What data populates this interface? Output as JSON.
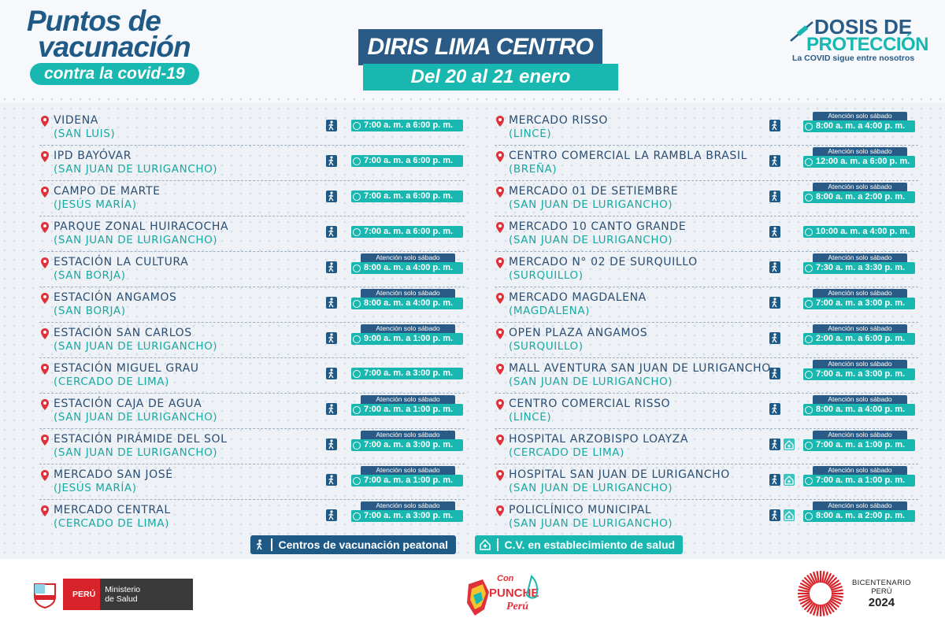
{
  "header": {
    "title_line1": "Puntos de",
    "title_line2": "vacunación",
    "title_pill": "contra la covid-19",
    "diris": "DIRIS LIMA CENTRO",
    "dates": "Del 20 al 21  enero",
    "campaign_line1": "DOSIS DE",
    "campaign_line2": "PROTECCIÓN",
    "campaign_line3": "La COVID sigue entre nosotros"
  },
  "saturday_label": "Atención solo  sábado",
  "left_points": [
    {
      "name": "VIDENA",
      "district": "(SAN LUIS)",
      "hours": "7:00 a. m. a 6:00 p. m.",
      "saturday_only": false,
      "health": false
    },
    {
      "name": "IPD BAYÓVAR",
      "district": "(SAN JUAN DE LURIGANCHO)",
      "hours": "7:00 a. m. a 6:00 p. m.",
      "saturday_only": false,
      "health": false
    },
    {
      "name": "CAMPO DE MARTE",
      "district": "(JESÚS MARÍA)",
      "hours": "7:00 a. m. a 6:00 p. m.",
      "saturday_only": false,
      "health": false
    },
    {
      "name": "PARQUE ZONAL HUIRACOCHA",
      "district": "(SAN JUAN DE LURIGANCHO)",
      "hours": "7:00 a. m. a 6:00 p. m.",
      "saturday_only": false,
      "health": false
    },
    {
      "name": "ESTACIÓN LA CULTURA",
      "district": "(SAN BORJA)",
      "hours": "8:00 a. m. a 4:00 p. m.",
      "saturday_only": true,
      "health": false
    },
    {
      "name": "ESTACIÓN ANGAMOS",
      "district": "(SAN BORJA)",
      "hours": "8:00 a. m. a 4:00 p. m.",
      "saturday_only": true,
      "health": false
    },
    {
      "name": "ESTACIÓN SAN CARLOS",
      "district": "(SAN JUAN DE LURIGANCHO)",
      "hours": "9:00 a. m. a 1:00 p. m.",
      "saturday_only": true,
      "health": false
    },
    {
      "name": "ESTACIÓN MIGUEL GRAU",
      "district": "(CERCADO DE LIMA)",
      "hours": "7:00 a. m. a 3:00 p. m.",
      "saturday_only": false,
      "health": false
    },
    {
      "name": "ESTACIÓN CAJA DE AGUA",
      "district": "(SAN JUAN DE LURIGANCHO)",
      "hours": "7:00 a. m. a 1:00 p. m.",
      "saturday_only": true,
      "health": false
    },
    {
      "name": "ESTACIÓN PIRÁMIDE DEL SOL",
      "district": "(SAN JUAN DE LURIGANCHO)",
      "hours": "7:00 a. m. a 3:00 p. m.",
      "saturday_only": true,
      "health": false
    },
    {
      "name": "MERCADO SAN JOSÉ",
      "district": "(JESÚS MARÍA)",
      "hours": "7:00 a. m. a 1:00 p. m.",
      "saturday_only": true,
      "health": false
    },
    {
      "name": "MERCADO CENTRAL",
      "district": "(CERCADO DE LIMA)",
      "hours": "7:00 a. m. a 3:00 p. m.",
      "saturday_only": true,
      "health": false
    }
  ],
  "right_points": [
    {
      "name": "MERCADO RISSO",
      "district": "(LINCE)",
      "hours": "8:00 a. m. a 4:00 p. m.",
      "saturday_only": true,
      "health": false
    },
    {
      "name": "CENTRO COMERCIAL LA RAMBLA BRASIL",
      "district": "(BREÑA)",
      "hours": "12:00 a. m. a 6:00 p. m.",
      "saturday_only": true,
      "health": false
    },
    {
      "name": "MERCADO 01 DE SETIEMBRE",
      "district": "(SAN JUAN DE LURIGANCHO)",
      "hours": "8:00 a. m. a 2:00 p. m.",
      "saturday_only": true,
      "health": false
    },
    {
      "name": "MERCADO 10 CANTO GRANDE",
      "district": "(SAN JUAN DE LURIGANCHO)",
      "hours": "10:00 a. m. a 4:00 p. m.",
      "saturday_only": false,
      "health": false
    },
    {
      "name": "MERCADO N° 02 DE SURQUILLO",
      "district": "(SURQUILLO)",
      "hours": "7:30 a. m. a 3:30 p. m.",
      "saturday_only": true,
      "health": false
    },
    {
      "name": "MERCADO MAGDALENA",
      "district": "(MAGDALENA)",
      "hours": "7:00 a. m. a 3:00 p. m.",
      "saturday_only": true,
      "health": false
    },
    {
      "name": "OPEN PLAZA ANGAMOS",
      "district": "(SURQUILLO)",
      "hours": "2:00 a. m. a 6:00 p. m.",
      "saturday_only": true,
      "health": false
    },
    {
      "name": "MALL AVENTURA SAN JUAN DE LURIGANCHO",
      "district": "(SAN JUAN DE LURIGANCHO)",
      "hours": "7:00 a. m. a 3:00 p. m.",
      "saturday_only": true,
      "health": false
    },
    {
      "name": "CENTRO COMERCIAL RISSO",
      "district": "(LINCE)",
      "hours": "8:00 a. m. a 4:00 p. m.",
      "saturday_only": true,
      "health": false
    },
    {
      "name": "HOSPITAL ARZOBISPO LOAYZA",
      "district": "(CERCADO DE LIMA)",
      "hours": "7:00 a. m. a 1:00 p. m.",
      "saturday_only": true,
      "health": true
    },
    {
      "name": "HOSPITAL SAN JUAN DE LURIGANCHO",
      "district": "(SAN JUAN DE LURIGANCHO)",
      "hours": "7:00 a. m. a 1:00 p. m.",
      "saturday_only": true,
      "health": true
    },
    {
      "name": "POLICLÍNICO MUNICIPAL",
      "district": "(SAN JUAN DE LURIGANCHO)",
      "hours": "8:00 a. m. a 2:00 p. m.",
      "saturday_only": true,
      "health": true
    }
  ],
  "legend": {
    "walk": "Centros de vacunación peatonal",
    "health": "C.V. en establecimiento de salud"
  },
  "footer": {
    "peru": "PERÚ",
    "ministerio_l1": "Ministerio",
    "ministerio_l2": "de Salud",
    "con": "Con",
    "puche": "PUNCHE",
    "peru_script": "Perú",
    "bicent_l1": "BICENTENARIO",
    "bicent_l2": "PERÚ",
    "bicent_l3": "2024"
  },
  "colors": {
    "navy": "#2a5b86",
    "teal": "#18b7b0",
    "pin_red": "#e0303a"
  }
}
